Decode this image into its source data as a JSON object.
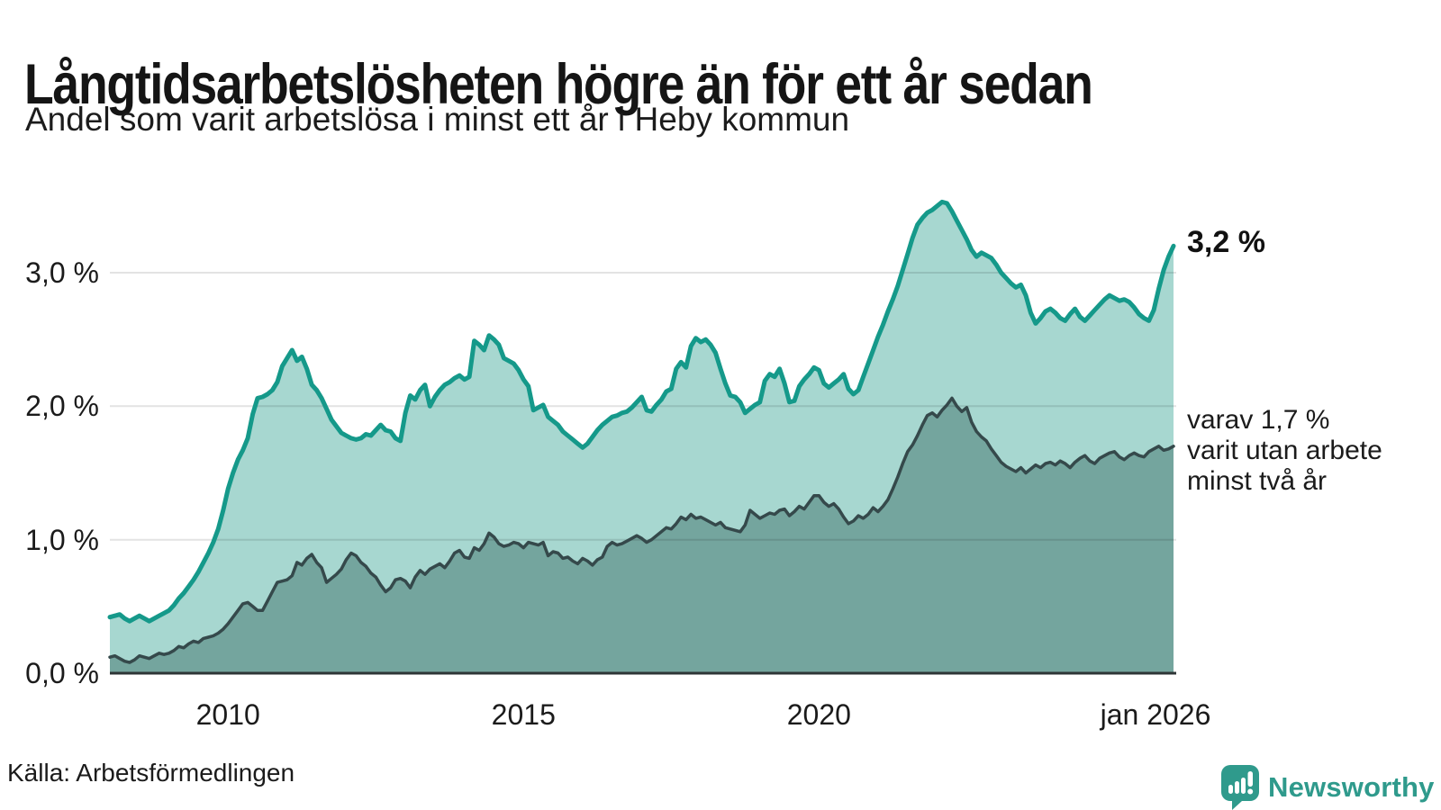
{
  "header": {
    "title": "Långtidsarbetslösheten högre än för ett år sedan",
    "subtitle": "Andel som varit arbetslösa i minst ett år i Heby kommun"
  },
  "annotations": {
    "latest_value": "3,2 %",
    "note_line1": "varav 1,7 %",
    "note_line2": "varit utan arbete",
    "note_line3": "minst två år"
  },
  "footer": {
    "source": "Källa: Arbetsförmedlingen",
    "brand": "Newsworthy"
  },
  "colors": {
    "accent_teal": "#15998a",
    "light_fill": "#a7d7d0",
    "dark_line": "#35494b",
    "dark_fill": "#74a59e",
    "baseline": "#2e3536",
    "gridline": "#000000",
    "brand_teal": "#2f9a8c"
  },
  "chart_data": {
    "type": "area",
    "title": "Långtidsarbetslösheten högre än för ett år sedan",
    "subtitle": "Andel som varit arbetslösa i minst ett år i Heby kommun",
    "x_start": "2008-01",
    "x_end": "2026-01",
    "interval": "monthly",
    "unit": "%",
    "ylim": [
      0,
      3.75
    ],
    "grid": true,
    "legend_position": "right-annotations",
    "yticks": [
      {
        "value": 0,
        "label": "0,0 %"
      },
      {
        "value": 1,
        "label": "1,0 %"
      },
      {
        "value": 2,
        "label": "2,0 %"
      },
      {
        "value": 3,
        "label": "3,0 %"
      }
    ],
    "xticks": [
      {
        "index": 24,
        "label": "2010",
        "dx": 0
      },
      {
        "index": 84,
        "label": "2015",
        "dx": 0
      },
      {
        "index": 144,
        "label": "2020",
        "dx": 0
      },
      {
        "index": 216,
        "label": "jan 2026",
        "dx": -20
      }
    ],
    "series": [
      {
        "id": "arbetslosa-minst-ett-ar",
        "latest_label": "3,2 %",
        "line_color": "#15998a",
        "fill_color": "#a7d7d0",
        "line_width": 5,
        "values": [
          0.42,
          0.43,
          0.44,
          0.41,
          0.39,
          0.41,
          0.43,
          0.41,
          0.39,
          0.41,
          0.43,
          0.45,
          0.47,
          0.51,
          0.56,
          0.6,
          0.65,
          0.7,
          0.76,
          0.83,
          0.9,
          0.98,
          1.08,
          1.22,
          1.38,
          1.5,
          1.6,
          1.67,
          1.76,
          1.94,
          2.06,
          2.07,
          2.09,
          2.12,
          2.18,
          2.3,
          2.36,
          2.42,
          2.34,
          2.37,
          2.28,
          2.16,
          2.12,
          2.06,
          1.98,
          1.9,
          1.85,
          1.8,
          1.78,
          1.76,
          1.75,
          1.76,
          1.79,
          1.78,
          1.82,
          1.86,
          1.82,
          1.81,
          1.76,
          1.74,
          1.95,
          2.08,
          2.05,
          2.12,
          2.16,
          2.0,
          2.07,
          2.12,
          2.16,
          2.18,
          2.21,
          2.23,
          2.2,
          2.22,
          2.49,
          2.46,
          2.42,
          2.53,
          2.5,
          2.46,
          2.36,
          2.34,
          2.32,
          2.27,
          2.2,
          2.15,
          1.97,
          1.99,
          2.01,
          1.92,
          1.89,
          1.86,
          1.81,
          1.78,
          1.75,
          1.72,
          1.69,
          1.72,
          1.77,
          1.82,
          1.86,
          1.89,
          1.92,
          1.93,
          1.95,
          1.96,
          1.99,
          2.03,
          2.07,
          1.97,
          1.96,
          2.01,
          2.05,
          2.11,
          2.13,
          2.28,
          2.33,
          2.29,
          2.45,
          2.51,
          2.48,
          2.5,
          2.46,
          2.4,
          2.28,
          2.17,
          2.08,
          2.07,
          2.03,
          1.95,
          1.98,
          2.01,
          2.03,
          2.19,
          2.24,
          2.22,
          2.28,
          2.17,
          2.03,
          2.04,
          2.15,
          2.2,
          2.24,
          2.29,
          2.27,
          2.17,
          2.14,
          2.17,
          2.2,
          2.24,
          2.13,
          2.09,
          2.12,
          2.22,
          2.32,
          2.42,
          2.52,
          2.61,
          2.71,
          2.8,
          2.9,
          3.02,
          3.14,
          3.26,
          3.36,
          3.41,
          3.45,
          3.47,
          3.5,
          3.53,
          3.52,
          3.46,
          3.39,
          3.32,
          3.25,
          3.17,
          3.12,
          3.15,
          3.13,
          3.11,
          3.06,
          3.0,
          2.96,
          2.92,
          2.89,
          2.91,
          2.83,
          2.7,
          2.62,
          2.66,
          2.71,
          2.73,
          2.7,
          2.66,
          2.64,
          2.69,
          2.73,
          2.67,
          2.64,
          2.68,
          2.72,
          2.76,
          2.8,
          2.83,
          2.81,
          2.79,
          2.8,
          2.78,
          2.74,
          2.69,
          2.66,
          2.64,
          2.72,
          2.88,
          3.02,
          3.12,
          3.2
        ]
      },
      {
        "id": "arbetslosa-minst-tva-ar",
        "latest_label": "1,7 %",
        "line_color": "#35494b",
        "fill_color": "#74a59e",
        "line_width": 3.5,
        "values": [
          0.12,
          0.13,
          0.11,
          0.09,
          0.08,
          0.1,
          0.13,
          0.12,
          0.11,
          0.13,
          0.15,
          0.14,
          0.15,
          0.17,
          0.2,
          0.19,
          0.22,
          0.24,
          0.23,
          0.26,
          0.27,
          0.28,
          0.3,
          0.33,
          0.37,
          0.42,
          0.47,
          0.52,
          0.53,
          0.5,
          0.47,
          0.47,
          0.54,
          0.61,
          0.68,
          0.69,
          0.7,
          0.73,
          0.83,
          0.81,
          0.86,
          0.89,
          0.83,
          0.79,
          0.68,
          0.71,
          0.74,
          0.78,
          0.85,
          0.9,
          0.88,
          0.83,
          0.8,
          0.75,
          0.72,
          0.66,
          0.61,
          0.64,
          0.7,
          0.71,
          0.69,
          0.64,
          0.72,
          0.77,
          0.74,
          0.78,
          0.8,
          0.82,
          0.79,
          0.84,
          0.9,
          0.92,
          0.87,
          0.86,
          0.94,
          0.92,
          0.97,
          1.05,
          1.02,
          0.97,
          0.95,
          0.96,
          0.98,
          0.97,
          0.94,
          0.98,
          0.97,
          0.96,
          0.98,
          0.88,
          0.91,
          0.9,
          0.86,
          0.87,
          0.84,
          0.82,
          0.86,
          0.84,
          0.81,
          0.85,
          0.87,
          0.95,
          0.98,
          0.96,
          0.97,
          0.99,
          1.01,
          1.03,
          1.01,
          0.98,
          1.0,
          1.03,
          1.06,
          1.09,
          1.08,
          1.12,
          1.17,
          1.15,
          1.19,
          1.16,
          1.17,
          1.15,
          1.13,
          1.11,
          1.13,
          1.09,
          1.08,
          1.07,
          1.06,
          1.11,
          1.22,
          1.19,
          1.16,
          1.18,
          1.2,
          1.19,
          1.22,
          1.23,
          1.18,
          1.21,
          1.25,
          1.23,
          1.28,
          1.33,
          1.33,
          1.28,
          1.25,
          1.27,
          1.23,
          1.17,
          1.12,
          1.14,
          1.18,
          1.16,
          1.19,
          1.24,
          1.21,
          1.25,
          1.3,
          1.38,
          1.47,
          1.57,
          1.66,
          1.71,
          1.78,
          1.86,
          1.93,
          1.95,
          1.92,
          1.97,
          2.01,
          2.06,
          2.0,
          1.96,
          1.99,
          1.88,
          1.81,
          1.77,
          1.74,
          1.68,
          1.63,
          1.58,
          1.55,
          1.53,
          1.51,
          1.54,
          1.5,
          1.53,
          1.56,
          1.54,
          1.57,
          1.58,
          1.56,
          1.59,
          1.57,
          1.54,
          1.58,
          1.61,
          1.63,
          1.59,
          1.57,
          1.61,
          1.63,
          1.65,
          1.66,
          1.62,
          1.6,
          1.63,
          1.65,
          1.63,
          1.62,
          1.66,
          1.68,
          1.7,
          1.67,
          1.68,
          1.7
        ]
      }
    ]
  }
}
